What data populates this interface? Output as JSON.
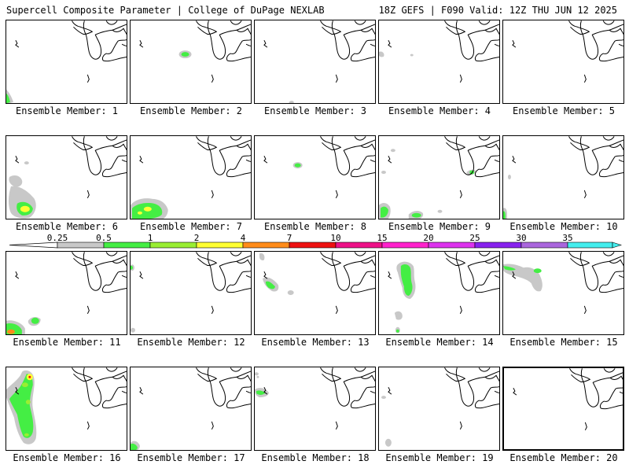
{
  "header": {
    "title": "Supercell Composite Parameter | College of DuPage NEXLAB",
    "run_info": "18Z GEFS | F090 Valid: 12Z THU JUN 12 2025"
  },
  "colorbar": {
    "labels": [
      "0.25",
      "0.5",
      "1",
      "2",
      "4",
      "7",
      "10",
      "15",
      "20",
      "25",
      "30",
      "35"
    ],
    "colors": [
      "#c8c8c8",
      "#44ee44",
      "#99ee33",
      "#ffff33",
      "#ff8c1a",
      "#ee1111",
      "#ee1188",
      "#ff22cc",
      "#dd33ee",
      "#8822ee",
      "#aa66dd",
      "#44eeee"
    ]
  },
  "map_colors": {
    "coast": "#000000",
    "gray": "#c8c8c8",
    "green": "#44ee44",
    "lime": "#99ee33",
    "yellow": "#ffff33",
    "orange": "#ff8c1a",
    "red": "#ee1111"
  },
  "panels": [
    {
      "label": "Ensemble Member: 1"
    },
    {
      "label": "Ensemble Member: 2"
    },
    {
      "label": "Ensemble Member: 3"
    },
    {
      "label": "Ensemble Member: 4"
    },
    {
      "label": "Ensemble Member: 5"
    },
    {
      "label": "Ensemble Member: 6"
    },
    {
      "label": "Ensemble Member: 7"
    },
    {
      "label": "Ensemble Member: 8"
    },
    {
      "label": "Ensemble Member: 9"
    },
    {
      "label": "Ensemble Member: 10"
    },
    {
      "label": "Ensemble Member: 11"
    },
    {
      "label": "Ensemble Member: 12"
    },
    {
      "label": "Ensemble Member: 13"
    },
    {
      "label": "Ensemble Member: 14"
    },
    {
      "label": "Ensemble Member: 15"
    },
    {
      "label": "Ensemble Member: 16"
    },
    {
      "label": "Ensemble Member: 17"
    },
    {
      "label": "Ensemble Member: 18"
    },
    {
      "label": "Ensemble Member: 19"
    },
    {
      "label": "Ensemble Member: 20"
    }
  ]
}
